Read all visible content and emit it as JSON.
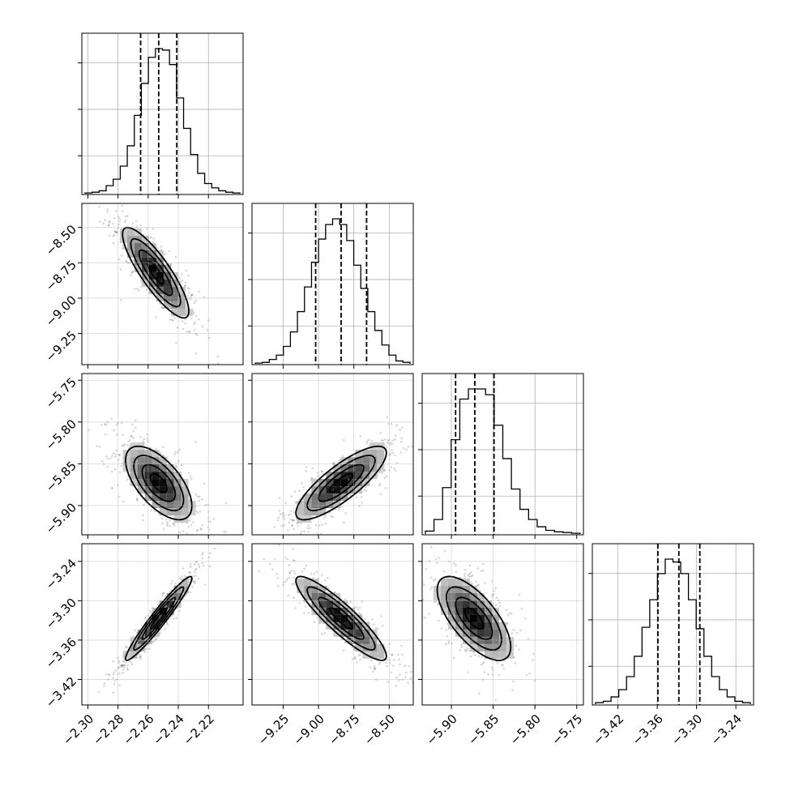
{
  "chart_data": {
    "type": "corner",
    "parameters": [
      {
        "ticks": [
          -2.3,
          -2.28,
          -2.26,
          -2.24,
          -2.22
        ],
        "tick_labels": [
          "−2.30",
          "−2.28",
          "−2.26",
          "−2.24",
          "−2.22"
        ],
        "range": [
          -2.304,
          -2.197
        ]
      },
      {
        "ticks": [
          -9.25,
          -9.0,
          -8.75,
          -8.5
        ],
        "tick_labels": [
          "−9.25",
          "−9.00",
          "−8.75",
          "−8.50"
        ],
        "range": [
          -9.47,
          -8.33
        ]
      },
      {
        "ticks": [
          -5.9,
          -5.85,
          -5.8,
          -5.75
        ],
        "tick_labels": [
          "−5.90",
          "−5.85",
          "−5.80",
          "−5.75"
        ],
        "range": [
          -5.935,
          -5.742
        ]
      },
      {
        "ticks": [
          -3.42,
          -3.36,
          -3.3,
          -3.24
        ],
        "tick_labels": [
          "−3.42",
          "−3.36",
          "−3.30",
          "−3.24"
        ],
        "range": [
          -3.459,
          -3.213
        ]
      }
    ],
    "histograms": [
      {
        "parameter": 0,
        "quantiles": [
          -2.265,
          -2.253,
          -2.241
        ],
        "counts": [
          0.005,
          0.01,
          0.02,
          0.055,
          0.1,
          0.19,
          0.33,
          0.54,
          0.76,
          0.94,
          1.0,
          0.99,
          0.89,
          0.66,
          0.45,
          0.27,
          0.14,
          0.07,
          0.04,
          0.02,
          0.01,
          0.005
        ]
      },
      {
        "parameter": 1,
        "quantiles": [
          -9.02,
          -8.84,
          -8.66
        ],
        "counts": [
          0.005,
          0.01,
          0.03,
          0.06,
          0.12,
          0.22,
          0.36,
          0.53,
          0.7,
          0.86,
          0.96,
          1.0,
          0.96,
          0.85,
          0.68,
          0.52,
          0.36,
          0.23,
          0.13,
          0.06,
          0.02,
          0.01
        ]
      },
      {
        "parameter": 2,
        "quantiles": [
          -5.895,
          -5.872,
          -5.849
        ],
        "counts": [
          0.02,
          0.1,
          0.32,
          0.65,
          0.93,
          1.0,
          1.0,
          0.96,
          0.75,
          0.52,
          0.31,
          0.17,
          0.1,
          0.05,
          0.025,
          0.015,
          0.01,
          0.005
        ]
      },
      {
        "parameter": 3,
        "quantiles": [
          -3.359,
          -3.327,
          -3.295
        ],
        "counts": [
          0.01,
          0.02,
          0.05,
          0.1,
          0.19,
          0.33,
          0.53,
          0.72,
          0.9,
          1.0,
          0.98,
          0.9,
          0.72,
          0.52,
          0.33,
          0.19,
          0.1,
          0.05,
          0.02,
          0.01
        ]
      }
    ],
    "pairs": [
      {
        "x": 0,
        "y": 1,
        "center": [
          -2.255,
          -8.82
        ],
        "sigma": [
          0.011,
          0.16
        ],
        "correlation": -0.85
      },
      {
        "x": 0,
        "y": 2,
        "center": [
          -2.253,
          -5.873
        ],
        "sigma": [
          0.011,
          0.022
        ],
        "correlation": -0.62
      },
      {
        "x": 0,
        "y": 3,
        "center": [
          -2.253,
          -3.327
        ],
        "sigma": [
          0.011,
          0.032
        ],
        "correlation": 0.96
      },
      {
        "x": 1,
        "y": 2,
        "center": [
          -8.84,
          -5.873
        ],
        "sigma": [
          0.16,
          0.022
        ],
        "correlation": 0.82
      },
      {
        "x": 1,
        "y": 3,
        "center": [
          -8.84,
          -3.327
        ],
        "sigma": [
          0.16,
          0.032
        ],
        "correlation": -0.9
      },
      {
        "x": 2,
        "y": 3,
        "center": [
          -5.873,
          -3.327
        ],
        "sigma": [
          0.022,
          0.032
        ],
        "correlation": -0.68
      }
    ]
  }
}
